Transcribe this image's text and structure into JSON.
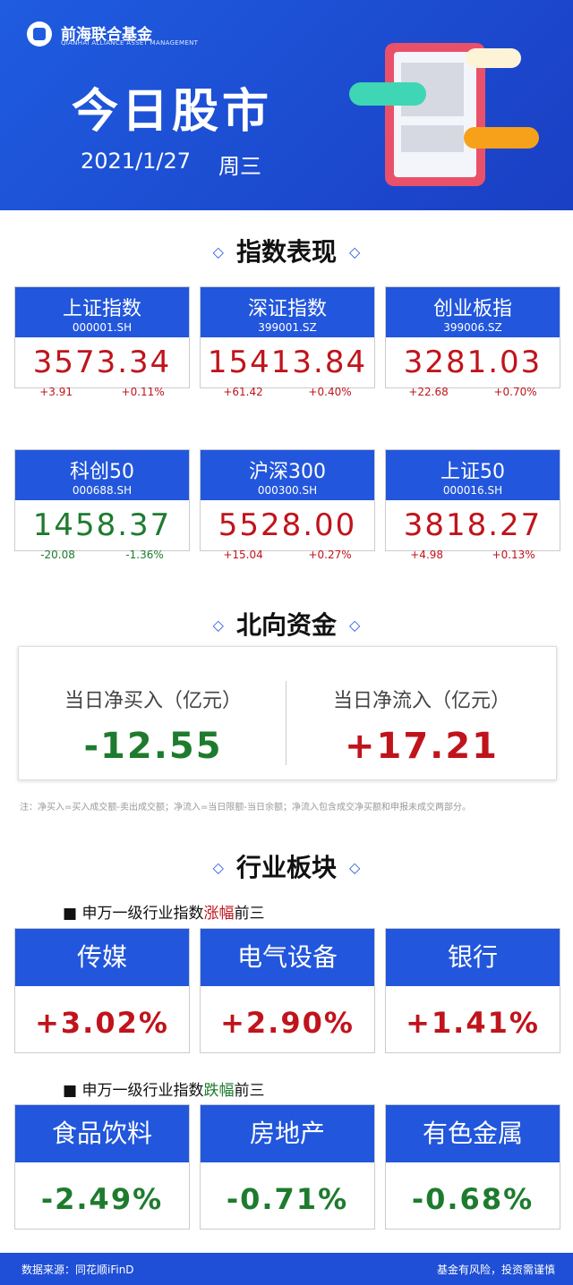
{
  "header": {
    "brand": "前海联合基金",
    "brand_en": "QIANHAI ALLIANCE ASSET MANAGEMENT",
    "title": "今日股市",
    "date": "2021/1/27",
    "weekday": "周三"
  },
  "indices": {
    "title": "指数表现",
    "cards": [
      {
        "name": "上证指数",
        "code": "000001.SH",
        "value": "3573.34",
        "change": "+3.91",
        "pct": "+0.11%"
      },
      {
        "name": "深证指数",
        "code": "399001.SZ",
        "value": "15413.84",
        "change": "+61.42",
        "pct": "+0.40%"
      },
      {
        "name": "创业板指",
        "code": "399006.SZ",
        "value": "3281.03",
        "change": "+22.68",
        "pct": "+0.70%"
      },
      {
        "name": "科创50",
        "code": "000688.SH",
        "value": "1458.37",
        "change": "-20.08",
        "pct": "-1.36%"
      },
      {
        "name": "沪深300",
        "code": "000300.SH",
        "value": "5528.00",
        "change": "+15.04",
        "pct": "+0.27%"
      },
      {
        "name": "上证50",
        "code": "000016.SH",
        "value": "3818.27",
        "change": "+4.98",
        "pct": "+0.13%"
      }
    ]
  },
  "northbound": {
    "title": "北向资金",
    "items": [
      {
        "label": "当日净买入（亿元）",
        "value": "-12.55"
      },
      {
        "label": "当日净流入（亿元）",
        "value": "+17.21"
      }
    ],
    "note": "注：净买入=买入成交额-卖出成交额；净流入=当日限额-当日余额；净流入包含成交净买额和申报未成交两部分。"
  },
  "industry": {
    "title": "行业板块",
    "gainers": {
      "caption": [
        "■ 申万一级行业指数",
        "涨幅",
        "前三"
      ],
      "items": [
        {
          "name": "传媒",
          "pct": "+3.02%"
        },
        {
          "name": "电气设备",
          "pct": "+2.90%"
        },
        {
          "name": "银行",
          "pct": "+1.41%"
        }
      ]
    },
    "losers": {
      "caption": [
        "■ 申万一级行业指数",
        "跌幅",
        "前三"
      ],
      "items": [
        {
          "name": "食品饮料",
          "pct": "-2.49%"
        },
        {
          "name": "房地产",
          "pct": "-0.71%"
        },
        {
          "name": "有色金属",
          "pct": "-0.68%"
        }
      ]
    }
  },
  "footer": {
    "source": "数据来源：同花顺iFinD",
    "risk": "基金有风险，投资需谨慎"
  }
}
